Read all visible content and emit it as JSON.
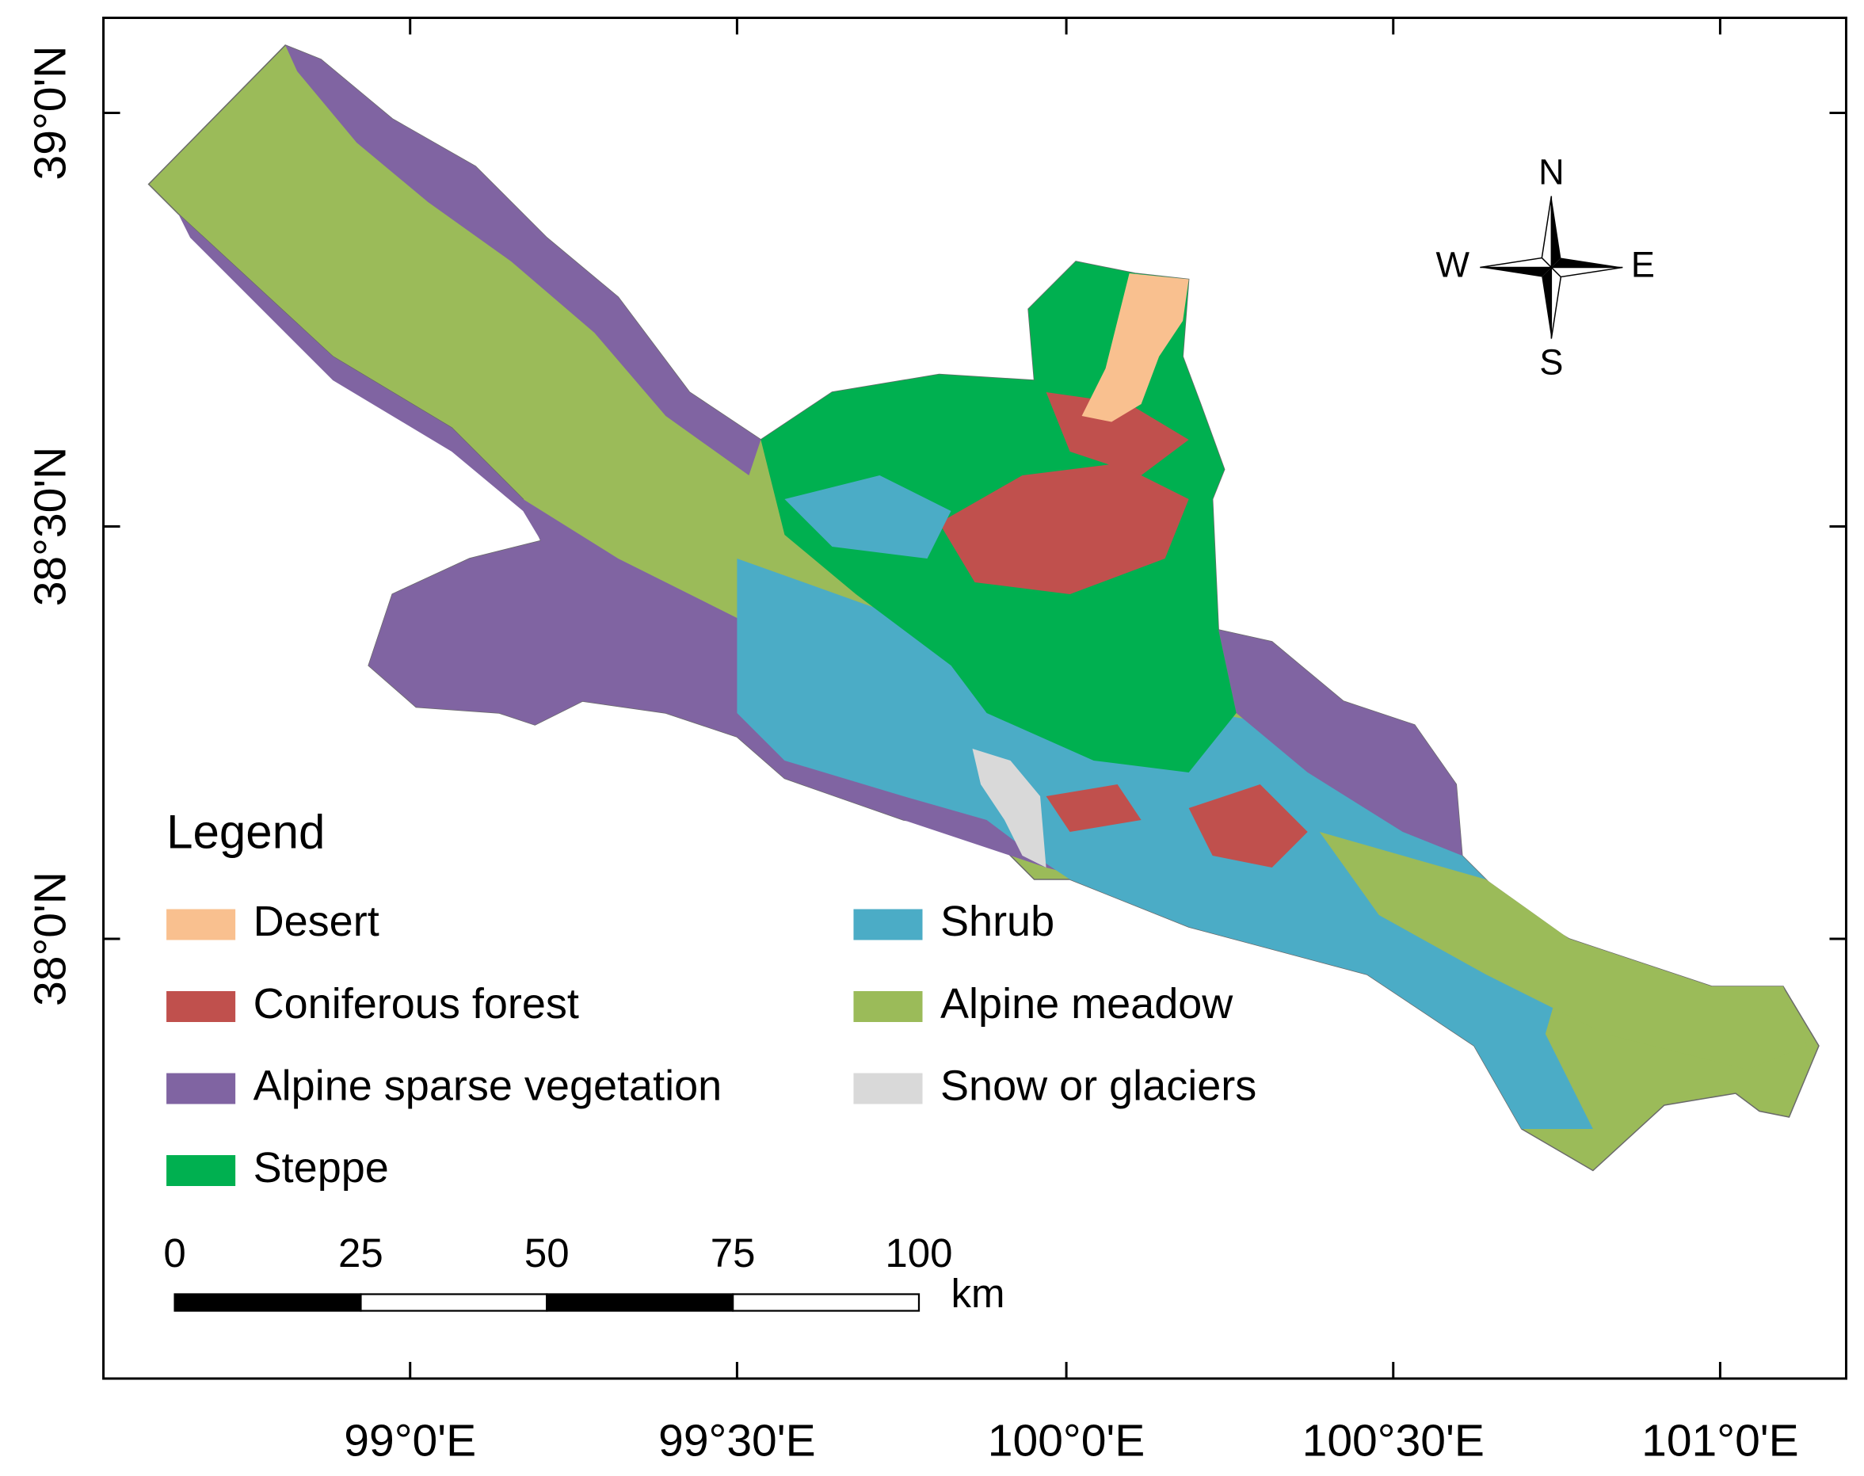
{
  "map": {
    "latitude_labels": [
      "39°0'N",
      "38°30'N",
      "38°0'N"
    ],
    "longitude_labels": [
      "99°0'E",
      "99°30'E",
      "100°0'E",
      "100°30'E",
      "101°0'E"
    ],
    "compass": {
      "north": "N",
      "south": "S",
      "west": "W",
      "east": "E"
    },
    "legend": {
      "title": "Legend",
      "items": [
        {
          "label": "Desert",
          "color": "#f9c08f"
        },
        {
          "label": "Coniferous forest",
          "color": "#c0504d"
        },
        {
          "label": "Alpine sparse vegetation",
          "color": "#8064a2"
        },
        {
          "label": "Steppe",
          "color": "#00b050"
        },
        {
          "label": "Shrub",
          "color": "#4bacc6"
        },
        {
          "label": "Alpine meadow",
          "color": "#9bbb59"
        },
        {
          "label": "Snow or glaciers",
          "color": "#d9d9d9"
        }
      ]
    },
    "scale_bar": {
      "ticks": [
        0,
        25,
        50,
        75,
        100
      ],
      "unit": "km"
    }
  }
}
